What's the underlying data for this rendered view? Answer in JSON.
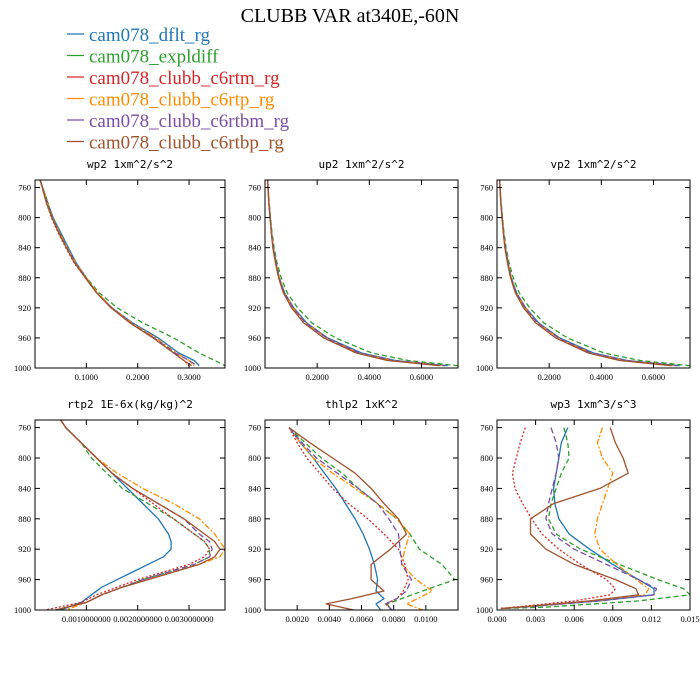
{
  "figure": {
    "title": "CLUBB VAR at340E,-60N"
  },
  "legend": [
    {
      "name": "cam078_dflt_rg",
      "color": "#1f77b4",
      "dash": ""
    },
    {
      "name": "cam078_expldiff",
      "color": "#2ca02c",
      "dash": "5,3"
    },
    {
      "name": "cam078_clubb_c6rtm_rg",
      "color": "#d62728",
      "dash": "2,2"
    },
    {
      "name": "cam078_clubb_c6rtp_rg",
      "color": "#ff8c00",
      "dash": "6,2,2,2"
    },
    {
      "name": "cam078_clubb_c6rtbm_rg",
      "color": "#7b4fa6",
      "dash": "6,3"
    },
    {
      "name": "cam078_clubb_c6rtbp_rg",
      "color": "#a0522d",
      "dash": ""
    }
  ],
  "chart_data": [
    {
      "type": "line",
      "title": "wp2  1xm^2/s^2",
      "ylim": [
        1000,
        750
      ],
      "xlim": [
        0,
        0.37
      ],
      "yticks": [
        "760",
        "800",
        "840",
        "880",
        "920",
        "960",
        "1000"
      ],
      "xticks": [
        {
          "v": 0.1,
          "label": "0.1000"
        },
        {
          "v": 0.2,
          "label": "0.2000"
        },
        {
          "v": 0.3,
          "label": "0.3000"
        }
      ],
      "y": [
        750,
        760,
        780,
        800,
        820,
        840,
        860,
        880,
        900,
        920,
        940,
        960,
        980,
        990,
        997
      ],
      "series": [
        {
          "values": [
            0.01,
            0.015,
            0.025,
            0.035,
            0.05,
            0.065,
            0.08,
            0.1,
            0.12,
            0.15,
            0.19,
            0.24,
            0.28,
            0.31,
            0.32
          ]
        },
        {
          "values": [
            0.01,
            0.015,
            0.025,
            0.035,
            0.048,
            0.062,
            0.078,
            0.1,
            0.125,
            0.16,
            0.21,
            0.27,
            0.32,
            0.35,
            0.37
          ]
        },
        {
          "values": [
            0.01,
            0.014,
            0.022,
            0.032,
            0.045,
            0.06,
            0.076,
            0.098,
            0.12,
            0.148,
            0.185,
            0.23,
            0.27,
            0.29,
            0.3
          ]
        },
        {
          "values": [
            0.01,
            0.015,
            0.024,
            0.034,
            0.048,
            0.063,
            0.079,
            0.1,
            0.122,
            0.15,
            0.188,
            0.235,
            0.275,
            0.3,
            0.31
          ]
        },
        {
          "values": [
            0.01,
            0.014,
            0.023,
            0.034,
            0.047,
            0.062,
            0.078,
            0.099,
            0.12,
            0.149,
            0.186,
            0.232,
            0.273,
            0.3,
            0.315
          ]
        },
        {
          "values": [
            0.01,
            0.014,
            0.022,
            0.033,
            0.046,
            0.061,
            0.077,
            0.098,
            0.12,
            0.148,
            0.185,
            0.23,
            0.27,
            0.29,
            0.305
          ]
        }
      ]
    },
    {
      "type": "line",
      "title": "up2  1xm^2/s^2",
      "ylim": [
        1000,
        750
      ],
      "xlim": [
        0,
        0.74
      ],
      "yticks": [
        "760",
        "800",
        "840",
        "880",
        "920",
        "960",
        "1000"
      ],
      "xticks": [
        {
          "v": 0.2,
          "label": "0.2000"
        },
        {
          "v": 0.4,
          "label": "0.4000"
        },
        {
          "v": 0.6,
          "label": "0.6000"
        }
      ],
      "y": [
        750,
        760,
        780,
        800,
        820,
        840,
        860,
        880,
        900,
        920,
        940,
        960,
        980,
        990,
        997
      ],
      "series": [
        {
          "values": [
            0.01,
            0.012,
            0.015,
            0.02,
            0.025,
            0.032,
            0.042,
            0.055,
            0.075,
            0.11,
            0.16,
            0.24,
            0.37,
            0.5,
            0.7
          ]
        },
        {
          "values": [
            0.01,
            0.012,
            0.016,
            0.021,
            0.027,
            0.035,
            0.046,
            0.062,
            0.085,
            0.125,
            0.18,
            0.27,
            0.41,
            0.55,
            0.74
          ]
        },
        {
          "values": [
            0.01,
            0.012,
            0.015,
            0.02,
            0.025,
            0.032,
            0.042,
            0.055,
            0.074,
            0.108,
            0.155,
            0.235,
            0.36,
            0.49,
            0.69
          ]
        },
        {
          "values": [
            0.01,
            0.012,
            0.015,
            0.02,
            0.025,
            0.032,
            0.042,
            0.055,
            0.074,
            0.108,
            0.156,
            0.236,
            0.36,
            0.49,
            0.69
          ]
        },
        {
          "values": [
            0.01,
            0.012,
            0.015,
            0.02,
            0.025,
            0.032,
            0.042,
            0.055,
            0.074,
            0.108,
            0.156,
            0.236,
            0.362,
            0.49,
            0.69
          ]
        },
        {
          "values": [
            0.01,
            0.011,
            0.014,
            0.019,
            0.024,
            0.03,
            0.04,
            0.052,
            0.07,
            0.102,
            0.148,
            0.225,
            0.35,
            0.47,
            0.67
          ]
        }
      ]
    },
    {
      "type": "line",
      "title": "vp2  1xm^2/s^2",
      "ylim": [
        1000,
        750
      ],
      "xlim": [
        0,
        0.74
      ],
      "yticks": [
        "760",
        "800",
        "840",
        "880",
        "920",
        "960",
        "1000"
      ],
      "xticks": [
        {
          "v": 0.2,
          "label": "0.2000"
        },
        {
          "v": 0.4,
          "label": "0.4000"
        },
        {
          "v": 0.6,
          "label": "0.6000"
        }
      ],
      "y": [
        750,
        760,
        780,
        800,
        820,
        840,
        860,
        880,
        900,
        920,
        940,
        960,
        980,
        990,
        997
      ],
      "series": [
        {
          "values": [
            0.01,
            0.012,
            0.015,
            0.02,
            0.025,
            0.032,
            0.042,
            0.055,
            0.075,
            0.11,
            0.16,
            0.24,
            0.37,
            0.5,
            0.7
          ]
        },
        {
          "values": [
            0.01,
            0.012,
            0.016,
            0.021,
            0.027,
            0.035,
            0.046,
            0.062,
            0.085,
            0.125,
            0.18,
            0.27,
            0.41,
            0.55,
            0.74
          ]
        },
        {
          "values": [
            0.01,
            0.012,
            0.015,
            0.02,
            0.025,
            0.032,
            0.042,
            0.055,
            0.074,
            0.108,
            0.155,
            0.235,
            0.36,
            0.49,
            0.69
          ]
        },
        {
          "values": [
            0.01,
            0.012,
            0.015,
            0.02,
            0.025,
            0.032,
            0.042,
            0.055,
            0.074,
            0.108,
            0.156,
            0.236,
            0.36,
            0.49,
            0.69
          ]
        },
        {
          "values": [
            0.01,
            0.012,
            0.015,
            0.02,
            0.025,
            0.032,
            0.042,
            0.055,
            0.074,
            0.108,
            0.156,
            0.236,
            0.362,
            0.49,
            0.69
          ]
        },
        {
          "values": [
            0.01,
            0.011,
            0.014,
            0.019,
            0.024,
            0.03,
            0.04,
            0.052,
            0.07,
            0.102,
            0.148,
            0.225,
            0.35,
            0.47,
            0.67
          ]
        }
      ]
    },
    {
      "type": "line",
      "title": "rtp2  1E-6x(kg/kg)^2",
      "ylim": [
        1000,
        750
      ],
      "xlim": [
        0,
        0.0037
      ],
      "yticks": [
        "760",
        "800",
        "840",
        "880",
        "920",
        "960",
        "1000"
      ],
      "xticks": [
        {
          "v": 0.001,
          "label": "0.0010000000"
        },
        {
          "v": 0.002,
          "label": "0.0020000000"
        },
        {
          "v": 0.003,
          "label": "0.0030000000"
        }
      ],
      "y": [
        750,
        760,
        780,
        800,
        820,
        840,
        860,
        880,
        900,
        910,
        920,
        930,
        940,
        950,
        960,
        970,
        980,
        990,
        1000
      ],
      "series": [
        {
          "values": [
            0.0005,
            0.0006,
            0.0009,
            0.0012,
            0.0015,
            0.0018,
            0.0021,
            0.0024,
            0.0026,
            0.00265,
            0.00265,
            0.0025,
            0.0022,
            0.0019,
            0.0016,
            0.0013,
            0.0011,
            0.0009,
            0.0005
          ]
        },
        {
          "values": [
            0.0005,
            0.0006,
            0.0009,
            0.0011,
            0.0014,
            0.0017,
            0.0022,
            0.0027,
            0.0031,
            0.0033,
            0.0034,
            0.0034,
            0.0031,
            0.0026,
            0.0021,
            0.0017,
            0.0013,
            0.001,
            0.0004
          ]
        },
        {
          "values": [
            0.0005,
            0.0006,
            0.0009,
            0.0012,
            0.0015,
            0.0019,
            0.0023,
            0.0027,
            0.0031,
            0.0033,
            0.0034,
            0.0033,
            0.003,
            0.0025,
            0.002,
            0.0016,
            0.0012,
            0.0009,
            0.0002
          ]
        },
        {
          "values": [
            0.0005,
            0.0006,
            0.0009,
            0.0012,
            0.0016,
            0.0021,
            0.0027,
            0.0032,
            0.0035,
            0.0036,
            0.0037,
            0.0036,
            0.0032,
            0.0027,
            0.0022,
            0.0017,
            0.0013,
            0.001,
            0.0006
          ]
        },
        {
          "values": [
            0.0005,
            0.0006,
            0.0009,
            0.0012,
            0.0015,
            0.0019,
            0.0024,
            0.0029,
            0.0032,
            0.0034,
            0.00345,
            0.0034,
            0.0031,
            0.0026,
            0.0021,
            0.0017,
            0.0013,
            0.001,
            0.0004
          ]
        },
        {
          "values": [
            0.0005,
            0.0006,
            0.0009,
            0.0012,
            0.0015,
            0.0019,
            0.0024,
            0.0029,
            0.0033,
            0.0035,
            0.0036,
            0.0035,
            0.0032,
            0.0027,
            0.0022,
            0.0017,
            0.0013,
            0.001,
            0.0004
          ]
        }
      ]
    },
    {
      "type": "line",
      "title": "thlp2  1xK^2",
      "ylim": [
        1000,
        750
      ],
      "xlim": [
        0,
        0.012
      ],
      "yticks": [
        "760",
        "800",
        "840",
        "880",
        "920",
        "960",
        "1000"
      ],
      "xticks": [
        {
          "v": 0.002,
          "label": "0.0020"
        },
        {
          "v": 0.004,
          "label": "0.0040"
        },
        {
          "v": 0.006,
          "label": "0.0060"
        },
        {
          "v": 0.008,
          "label": "0.0080"
        },
        {
          "v": 0.01,
          "label": "0.0100"
        }
      ],
      "y": [
        760,
        780,
        800,
        820,
        840,
        860,
        880,
        900,
        920,
        940,
        960,
        975,
        985,
        992,
        1000
      ],
      "series": [
        {
          "values": [
            0.0015,
            0.0022,
            0.003,
            0.0037,
            0.0044,
            0.005,
            0.0056,
            0.0061,
            0.0065,
            0.0068,
            0.007,
            0.0069,
            0.0074,
            0.0069,
            0.0072
          ]
        },
        {
          "values": [
            0.0015,
            0.0025,
            0.0035,
            0.0048,
            0.0058,
            0.007,
            0.0082,
            0.009,
            0.0096,
            0.011,
            0.0118,
            0.0098,
            0.0085,
            0.0076,
            0.0078
          ]
        },
        {
          "values": [
            0.0015,
            0.002,
            0.0026,
            0.0034,
            0.0042,
            0.0052,
            0.0064,
            0.0074,
            0.0083,
            0.0087,
            0.0089,
            0.0086,
            0.0082,
            0.0075,
            0.0079
          ]
        },
        {
          "values": [
            0.0015,
            0.0022,
            0.003,
            0.0042,
            0.0056,
            0.007,
            0.0082,
            0.009,
            0.0087,
            0.0085,
            0.0094,
            0.0104,
            0.0095,
            0.0088,
            0.0098
          ]
        },
        {
          "values": [
            0.0015,
            0.0023,
            0.0032,
            0.0045,
            0.0058,
            0.007,
            0.0077,
            0.0083,
            0.0084,
            0.0085,
            0.0091,
            0.0088,
            0.0082,
            0.0075,
            0.0079
          ]
        },
        {
          "values": [
            0.0015,
            0.0028,
            0.0042,
            0.0056,
            0.0066,
            0.0074,
            0.0083,
            0.0088,
            0.0078,
            0.0066,
            0.0066,
            0.0074,
            0.0054,
            0.0038,
            0.0055
          ]
        }
      ]
    },
    {
      "type": "line",
      "title": "wp3  1xm^3/s^3",
      "ylim": [
        1000,
        750
      ],
      "xlim": [
        0,
        0.015
      ],
      "yticks": [
        "760",
        "800",
        "840",
        "880",
        "920",
        "960",
        "1000"
      ],
      "xticks": [
        {
          "v": 0,
          "label": "0.000"
        },
        {
          "v": 0.003,
          "label": "0.003"
        },
        {
          "v": 0.006,
          "label": "0.006"
        },
        {
          "v": 0.009,
          "label": "0.009"
        },
        {
          "v": 0.012,
          "label": "0.012"
        },
        {
          "v": 0.015,
          "label": "0.015"
        }
      ],
      "y": [
        760,
        780,
        800,
        820,
        840,
        860,
        880,
        900,
        920,
        940,
        960,
        972,
        980,
        988,
        996,
        998
      ],
      "series": [
        {
          "values": [
            0.0055,
            0.005,
            0.0048,
            0.0046,
            0.0044,
            0.0045,
            0.0048,
            0.0056,
            0.0072,
            0.009,
            0.011,
            0.0122,
            0.0122,
            0.008,
            0.002,
            0.0003
          ]
        },
        {
          "values": [
            0.0052,
            0.0055,
            0.0056,
            0.005,
            0.0046,
            0.0042,
            0.004,
            0.0046,
            0.0065,
            0.0095,
            0.0125,
            0.0145,
            0.015,
            0.011,
            0.004,
            0.0005
          ]
        },
        {
          "values": [
            0.0022,
            0.0018,
            0.0015,
            0.0012,
            0.0014,
            0.002,
            0.0027,
            0.0035,
            0.0048,
            0.0065,
            0.0085,
            0.0092,
            0.0088,
            0.006,
            0.0015,
            0.0002
          ]
        },
        {
          "values": [
            0.0082,
            0.0078,
            0.0082,
            0.009,
            0.0086,
            0.0082,
            0.0078,
            0.0076,
            0.008,
            0.0093,
            0.0108,
            0.0118,
            0.0115,
            0.0075,
            0.002,
            0.0003
          ]
        },
        {
          "values": [
            0.0042,
            0.0046,
            0.0048,
            0.0046,
            0.0043,
            0.004,
            0.0038,
            0.0043,
            0.006,
            0.0085,
            0.011,
            0.0124,
            0.0122,
            0.008,
            0.0022,
            0.0003
          ]
        },
        {
          "values": [
            0.0088,
            0.0092,
            0.0098,
            0.0102,
            0.008,
            0.0044,
            0.0026,
            0.0026,
            0.0038,
            0.006,
            0.0092,
            0.0108,
            0.011,
            0.0072,
            0.0018,
            0.0003
          ]
        }
      ]
    }
  ]
}
